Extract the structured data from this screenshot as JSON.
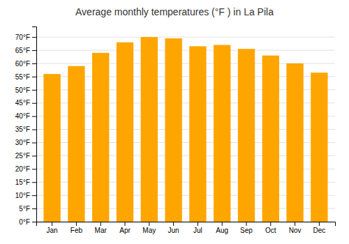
{
  "chart_data": {
    "type": "bar",
    "title": "Average monthly temperatures (°F ) in La Pila",
    "categories": [
      "Jan",
      "Feb",
      "Mar",
      "Apr",
      "May",
      "Jun",
      "Jul",
      "Aug",
      "Sep",
      "Oct",
      "Nov",
      "Dec"
    ],
    "values": [
      56,
      59,
      64,
      68,
      70,
      69.5,
      66.5,
      67,
      65.5,
      63,
      60,
      56.5
    ],
    "color": "#FFA500",
    "ylim": [
      0,
      74
    ],
    "yticks": [
      {
        "value": 0,
        "label": "0°F"
      },
      {
        "value": 5,
        "label": "5°F"
      },
      {
        "value": 10,
        "label": "10°F"
      },
      {
        "value": 15,
        "label": "15°F"
      },
      {
        "value": 20,
        "label": "20°F"
      },
      {
        "value": 25,
        "label": "25°F"
      },
      {
        "value": 30,
        "label": "30°F"
      },
      {
        "value": 35,
        "label": "35°F"
      },
      {
        "value": 40,
        "label": "40°F"
      },
      {
        "value": 45,
        "label": "45°F"
      },
      {
        "value": 50,
        "label": "50°F"
      },
      {
        "value": 55,
        "label": "55°F"
      },
      {
        "value": 60,
        "label": "60°F"
      },
      {
        "value": 65,
        "label": "65°F"
      },
      {
        "value": 70,
        "label": "70°F"
      }
    ],
    "grid": true
  }
}
